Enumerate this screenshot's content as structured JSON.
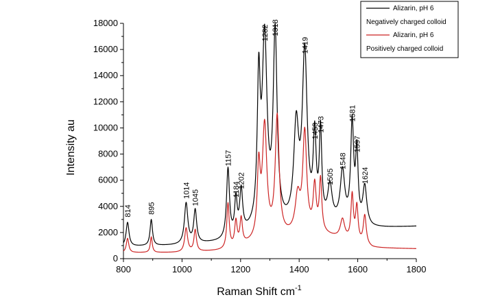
{
  "chart_data": {
    "type": "line",
    "title": "",
    "xlabel": "Raman Shift  cm",
    "xlabel_superscript": "-1",
    "ylabel": "Intensity  au",
    "xlim": [
      800,
      1800
    ],
    "ylim": [
      0,
      18000
    ],
    "x_ticks": [
      800,
      1000,
      1200,
      1400,
      1600,
      1800
    ],
    "y_ticks": [
      0,
      2000,
      4000,
      6000,
      8000,
      10000,
      12000,
      14000,
      16000,
      18000
    ],
    "grid": false,
    "legend_position": "top-right",
    "legend": [
      {
        "line_label": "Alizarin, pH 6",
        "caption": "Negatively charged colloid",
        "color": "#000000"
      },
      {
        "line_label": "Alizarin, pH 6",
        "caption": "Positively charged colloid",
        "color": "#cc2222"
      }
    ],
    "series": [
      {
        "color": "#000000",
        "baseline": [
          [
            800,
            900
          ],
          [
            1000,
            1000
          ],
          [
            1150,
            1250
          ],
          [
            1250,
            2000
          ],
          [
            1450,
            2500
          ],
          [
            1550,
            2600
          ],
          [
            1650,
            2300
          ],
          [
            1800,
            2450
          ]
        ],
        "peaks": [
          {
            "x": 814,
            "y": 2750,
            "w": 6
          },
          {
            "x": 895,
            "y": 2950,
            "w": 5
          },
          {
            "x": 1014,
            "y": 4150,
            "w": 7
          },
          {
            "x": 1045,
            "y": 3600,
            "w": 6
          },
          {
            "x": 1157,
            "y": 6650,
            "w": 6
          },
          {
            "x": 1184,
            "y": 4200,
            "w": 5
          },
          {
            "x": 1202,
            "y": 4900,
            "w": 6
          },
          {
            "x": 1262,
            "y": 12500,
            "w": 6
          },
          {
            "x": 1282,
            "y": 16200,
            "w": 10
          },
          {
            "x": 1318,
            "y": 16600,
            "w": 8
          },
          {
            "x": 1390,
            "y": 9500,
            "w": 10
          },
          {
            "x": 1419,
            "y": 15250,
            "w": 10
          },
          {
            "x": 1453,
            "y": 8700,
            "w": 6
          },
          {
            "x": 1473,
            "y": 9200,
            "w": 5
          },
          {
            "x": 1505,
            "y": 5200,
            "w": 9
          },
          {
            "x": 1548,
            "y": 6400,
            "w": 9
          },
          {
            "x": 1581,
            "y": 10050,
            "w": 6
          },
          {
            "x": 1597,
            "y": 7700,
            "w": 5
          },
          {
            "x": 1624,
            "y": 5300,
            "w": 8
          }
        ]
      },
      {
        "color": "#cc2222",
        "baseline": [
          [
            800,
            450
          ],
          [
            1000,
            450
          ],
          [
            1150,
            600
          ],
          [
            1250,
            1200
          ],
          [
            1420,
            1900
          ],
          [
            1470,
            1900
          ],
          [
            1550,
            1400
          ],
          [
            1650,
            800
          ],
          [
            1800,
            750
          ]
        ],
        "peaks": [
          {
            "x": 814,
            "y": 1550,
            "w": 5
          },
          {
            "x": 895,
            "y": 1650,
            "w": 4
          },
          {
            "x": 1014,
            "y": 2300,
            "w": 6
          },
          {
            "x": 1045,
            "y": 2150,
            "w": 5
          },
          {
            "x": 1157,
            "y": 4100,
            "w": 5
          },
          {
            "x": 1184,
            "y": 2700,
            "w": 5
          },
          {
            "x": 1202,
            "y": 2900,
            "w": 5
          },
          {
            "x": 1262,
            "y": 6500,
            "w": 6
          },
          {
            "x": 1282,
            "y": 9850,
            "w": 9
          },
          {
            "x": 1325,
            "y": 10600,
            "w": 8
          },
          {
            "x": 1395,
            "y": 4500,
            "w": 10
          },
          {
            "x": 1419,
            "y": 9400,
            "w": 8
          },
          {
            "x": 1453,
            "y": 5300,
            "w": 6
          },
          {
            "x": 1473,
            "y": 5800,
            "w": 5
          },
          {
            "x": 1548,
            "y": 2900,
            "w": 9
          },
          {
            "x": 1581,
            "y": 4700,
            "w": 5
          },
          {
            "x": 1597,
            "y": 3800,
            "w": 5
          },
          {
            "x": 1624,
            "y": 3200,
            "w": 6
          }
        ]
      }
    ],
    "peak_labels": [
      {
        "text": "814",
        "x": 814,
        "y": 2750
      },
      {
        "text": "895",
        "x": 895,
        "y": 2950
      },
      {
        "text": "1014",
        "x": 1014,
        "y": 4150
      },
      {
        "text": "1045",
        "x": 1045,
        "y": 3600
      },
      {
        "text": "1157",
        "x": 1157,
        "y": 6650
      },
      {
        "text": "1184",
        "x": 1184,
        "y": 4250
      },
      {
        "text": "1202",
        "x": 1202,
        "y": 4900
      },
      {
        "text": "1282",
        "x": 1282,
        "y": 16200
      },
      {
        "text": "1318",
        "x": 1318,
        "y": 16600
      },
      {
        "text": "1419",
        "x": 1419,
        "y": 15250
      },
      {
        "text": "1453",
        "x": 1453,
        "y": 8700
      },
      {
        "text": "1473",
        "x": 1473,
        "y": 9200
      },
      {
        "text": "1505",
        "x": 1505,
        "y": 5200
      },
      {
        "text": "1548",
        "x": 1548,
        "y": 6400
      },
      {
        "text": "1581",
        "x": 1581,
        "y": 10050
      },
      {
        "text": "1597",
        "x": 1597,
        "y": 7700
      },
      {
        "text": "1624",
        "x": 1624,
        "y": 5300
      }
    ]
  }
}
